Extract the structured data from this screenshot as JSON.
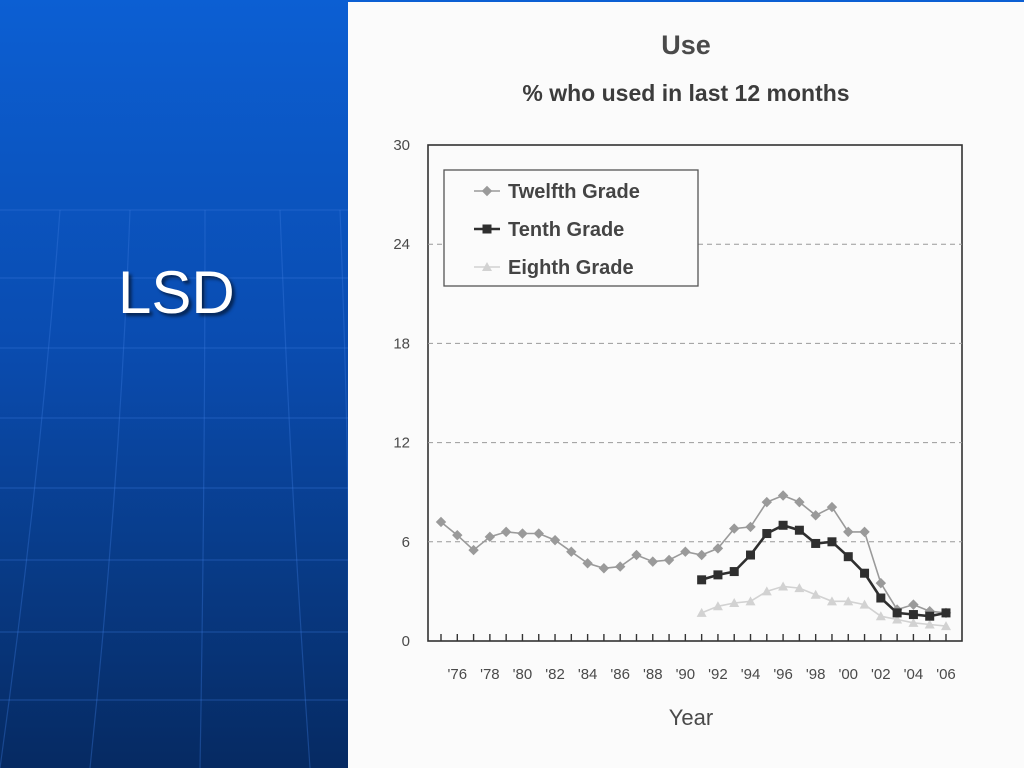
{
  "slide": {
    "title": "LSD",
    "background_color": "#0a4cb0"
  },
  "chart_data": {
    "type": "line",
    "title": "Use",
    "subtitle": "% who used in last 12 months",
    "xlabel": "Year",
    "ylabel": "",
    "ylim": [
      0,
      30
    ],
    "yticks": [
      0,
      6,
      12,
      18,
      24,
      30
    ],
    "xlim": [
      1975,
      2006
    ],
    "x_tick_labels": [
      "'76",
      "'78",
      "'80",
      "'82",
      "'84",
      "'86",
      "'88",
      "'90",
      "'92",
      "'94",
      "'96",
      "'98",
      "'00",
      "'02",
      "'04",
      "'06"
    ],
    "x_tick_years": [
      1976,
      1978,
      1980,
      1982,
      1984,
      1986,
      1988,
      1990,
      1992,
      1994,
      1996,
      1998,
      2000,
      2002,
      2004,
      2006
    ],
    "grid": "horizontal dashed",
    "legend": "top-left",
    "series": [
      {
        "name": "Twelfth Grade",
        "color": "#9a9a9a",
        "marker": "diamond",
        "x": [
          1975,
          1976,
          1977,
          1978,
          1979,
          1980,
          1981,
          1982,
          1983,
          1984,
          1985,
          1986,
          1987,
          1988,
          1989,
          1990,
          1991,
          1992,
          1993,
          1994,
          1995,
          1996,
          1997,
          1998,
          1999,
          2000,
          2001,
          2002,
          2003,
          2004,
          2005,
          2006
        ],
        "values": [
          7.2,
          6.4,
          5.5,
          6.3,
          6.6,
          6.5,
          6.5,
          6.1,
          5.4,
          4.7,
          4.4,
          4.5,
          5.2,
          4.8,
          4.9,
          5.4,
          5.2,
          5.6,
          6.8,
          6.9,
          8.4,
          8.8,
          8.4,
          7.6,
          8.1,
          6.6,
          6.6,
          3.5,
          1.9,
          2.2,
          1.8,
          1.7
        ]
      },
      {
        "name": "Tenth Grade",
        "color": "#2f2f2f",
        "marker": "square",
        "x": [
          1991,
          1992,
          1993,
          1994,
          1995,
          1996,
          1997,
          1998,
          1999,
          2000,
          2001,
          2002,
          2003,
          2004,
          2005,
          2006
        ],
        "values": [
          3.7,
          4.0,
          4.2,
          5.2,
          6.5,
          7.0,
          6.7,
          5.9,
          6.0,
          5.1,
          4.1,
          2.6,
          1.7,
          1.6,
          1.5,
          1.7
        ]
      },
      {
        "name": "Eighth Grade",
        "color": "#d2d2d2",
        "marker": "triangle",
        "x": [
          1991,
          1992,
          1993,
          1994,
          1995,
          1996,
          1997,
          1998,
          1999,
          2000,
          2001,
          2002,
          2003,
          2004,
          2005,
          2006
        ],
        "values": [
          1.7,
          2.1,
          2.3,
          2.4,
          3.0,
          3.3,
          3.2,
          2.8,
          2.4,
          2.4,
          2.2,
          1.5,
          1.3,
          1.1,
          1.0,
          0.9
        ]
      }
    ]
  }
}
